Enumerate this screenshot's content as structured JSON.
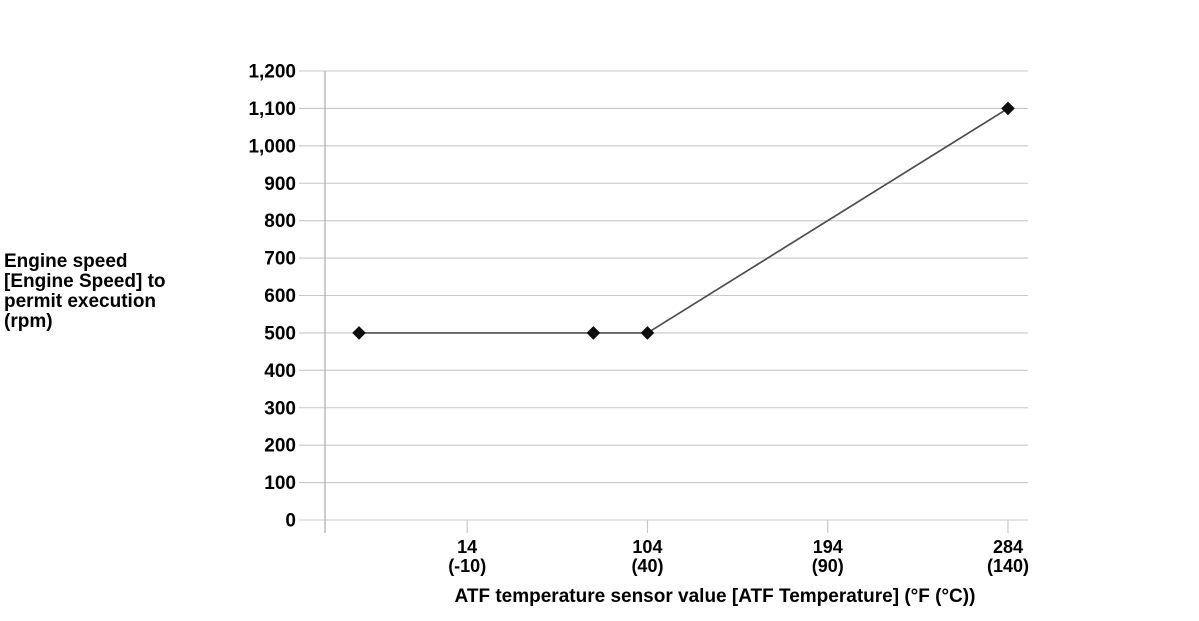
{
  "figure": {
    "y_axis_title": "Engine speed\n[Engine Speed] to\npermit execution\n(rpm)",
    "x_axis_title": "ATF temperature sensor value [ATF Temperature] (°F (°C))"
  },
  "chart_data": {
    "type": "line",
    "title": "",
    "xlabel": "ATF temperature sensor value [ATF Temperature] (°F (°C))",
    "ylabel": "Engine speed [Engine Speed] to permit execution (rpm)",
    "x_unit": "°F (°C)",
    "y_unit": "rpm",
    "xlim_f": [
      -57,
      294
    ],
    "ylim": [
      0,
      1200
    ],
    "grid": true,
    "legend": false,
    "marker": "diamond",
    "y_ticks": [
      {
        "value": 0,
        "label": "0"
      },
      {
        "value": 100,
        "label": "100"
      },
      {
        "value": 200,
        "label": "200"
      },
      {
        "value": 300,
        "label": "300"
      },
      {
        "value": 400,
        "label": "400"
      },
      {
        "value": 500,
        "label": "500"
      },
      {
        "value": 600,
        "label": "600"
      },
      {
        "value": 700,
        "label": "700"
      },
      {
        "value": 800,
        "label": "800"
      },
      {
        "value": 900,
        "label": "900"
      },
      {
        "value": 1000,
        "label": "1,000"
      },
      {
        "value": 1100,
        "label": "1,100"
      },
      {
        "value": 1200,
        "label": "1,200"
      }
    ],
    "x_ticks": [
      {
        "value_f": 14,
        "line1": "14",
        "line2": "(-10)"
      },
      {
        "value_f": 104,
        "line1": "104",
        "line2": "(40)"
      },
      {
        "value_f": 194,
        "line1": "194",
        "line2": "(90)"
      },
      {
        "value_f": 284,
        "line1": "284",
        "line2": "(140)"
      }
    ],
    "series": [
      {
        "name": "Engine speed to permit execution",
        "points": [
          {
            "x_f": -40,
            "x_c": -40,
            "y_rpm": 500
          },
          {
            "x_f": 77,
            "x_c": 25,
            "y_rpm": 500
          },
          {
            "x_f": 104,
            "x_c": 40,
            "y_rpm": 500
          },
          {
            "x_f": 284,
            "x_c": 140,
            "y_rpm": 1100
          }
        ]
      }
    ],
    "colors": {
      "background": "#ffffff",
      "grid": "#c8c8c8",
      "axis": "#ababab",
      "line": "#4d4d4d",
      "marker": "#0d0d0d",
      "text": "#000000"
    }
  }
}
